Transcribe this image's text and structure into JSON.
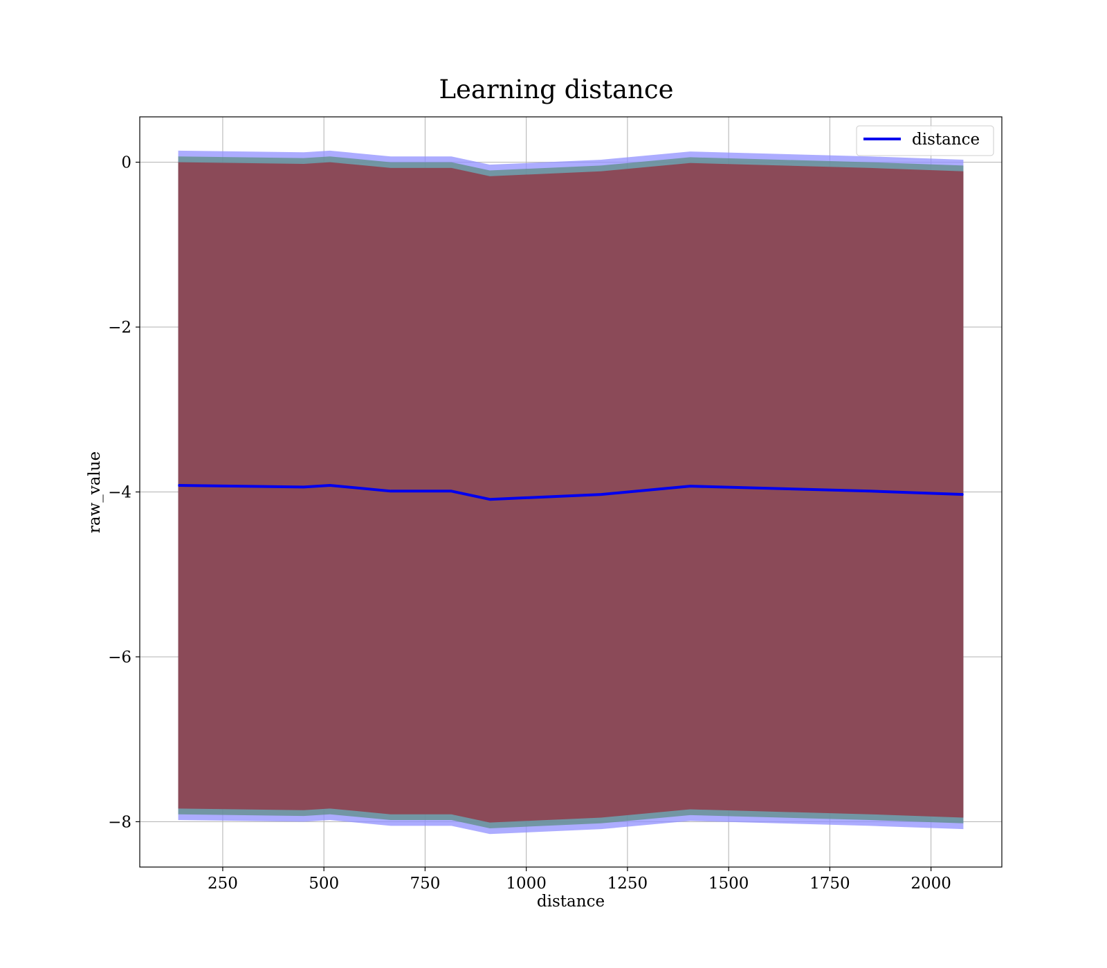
{
  "chart_data": {
    "type": "line",
    "title": "Learning distance",
    "xlabel": "distance",
    "ylabel": "raw_value",
    "xlim": [
      45,
      2175
    ],
    "ylim": [
      -8.55,
      0.55
    ],
    "xticks": [
      250,
      500,
      750,
      1000,
      1250,
      1500,
      1750,
      2000
    ],
    "yticks": [
      0,
      -2,
      -4,
      -6,
      -8
    ],
    "ytick_labels": [
      "0",
      "−2",
      "−4",
      "−6",
      "−8"
    ],
    "grid": true,
    "legend": {
      "placement": "top-right",
      "entries": [
        "distance"
      ]
    },
    "x": [
      140,
      450,
      515,
      665,
      815,
      910,
      1185,
      1405,
      1850,
      2080
    ],
    "series": [
      {
        "name": "distance",
        "values": [
          -3.92,
          -3.94,
          -3.92,
          -3.99,
          -3.99,
          -4.09,
          -4.03,
          -3.93,
          -3.99,
          -4.03
        ],
        "color": "#0000ee"
      }
    ],
    "bands": [
      {
        "color": "#8b4a58",
        "lower": [
          -7.84,
          -7.86,
          -7.84,
          -7.91,
          -7.91,
          -8.01,
          -7.95,
          -7.85,
          -7.91,
          -7.95
        ],
        "upper": [
          0.0,
          -0.02,
          0.0,
          -0.07,
          -0.07,
          -0.17,
          -0.11,
          -0.01,
          -0.07,
          -0.11
        ]
      },
      {
        "color": "#5f8f86",
        "lower": [
          -7.91,
          -7.93,
          -7.91,
          -7.98,
          -7.98,
          -8.08,
          -8.02,
          -7.92,
          -7.98,
          -8.02
        ],
        "upper": [
          0.07,
          0.05,
          0.07,
          0.0,
          0.0,
          -0.1,
          -0.04,
          0.06,
          0.0,
          -0.04
        ]
      },
      {
        "color": "#9090ff",
        "lower": [
          -7.98,
          -8.0,
          -7.98,
          -8.05,
          -8.05,
          -8.15,
          -8.09,
          -7.99,
          -8.05,
          -8.09
        ],
        "upper": [
          0.14,
          0.12,
          0.14,
          0.07,
          0.07,
          -0.03,
          0.03,
          0.13,
          0.07,
          0.03
        ]
      }
    ]
  }
}
